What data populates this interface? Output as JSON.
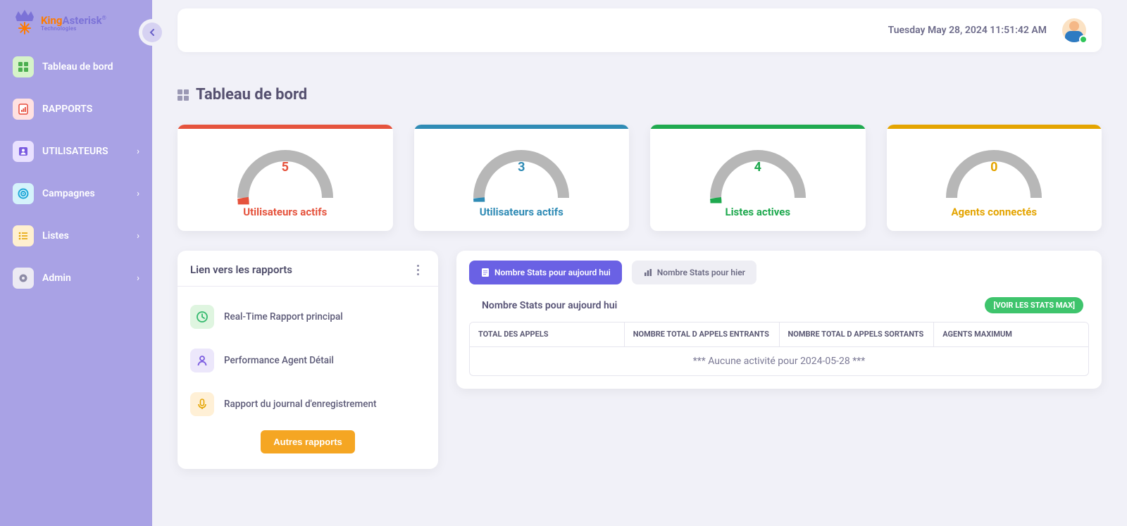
{
  "brand": {
    "name1": "King",
    "name2": "Asterisk",
    "sub": "Technologies"
  },
  "colors": {
    "sidebar_bg": "#a9a2e5",
    "accent_primary": "#6a61e4",
    "btn_orange": "#f5a623",
    "badge_green": "#3ec46c"
  },
  "sidebar": {
    "items": [
      {
        "label": "Tableau de bord",
        "icon_bg": "#d6f3c9",
        "icon_color": "#4caf50",
        "icon": "dashboard",
        "has_children": false
      },
      {
        "label": "RAPPORTS",
        "icon_bg": "#ffe1e1",
        "icon_color": "#e74c3c",
        "icon": "report",
        "has_children": false
      },
      {
        "label": "UTILISATEURS",
        "icon_bg": "#e9e1ff",
        "icon_color": "#7b5ce0",
        "icon": "user",
        "has_children": true
      },
      {
        "label": "Campagnes",
        "icon_bg": "#d5f3fb",
        "icon_color": "#1fa8d8",
        "icon": "target",
        "has_children": true
      },
      {
        "label": "Listes",
        "icon_bg": "#fff0d0",
        "icon_color": "#e4a400",
        "icon": "list",
        "has_children": true
      },
      {
        "label": "Admin",
        "icon_bg": "#eceaf3",
        "icon_color": "#8d8ba6",
        "icon": "gear",
        "has_children": true
      }
    ]
  },
  "header": {
    "timestamp": "Tuesday May 28, 2024 11:51:42 AM"
  },
  "page": {
    "title": "Tableau de bord"
  },
  "gauges": [
    {
      "value": "5",
      "label": "Utilisateurs actifs",
      "color": "#e5533d",
      "fill_pct": 5
    },
    {
      "value": "3",
      "label": "Utilisateurs actifs",
      "color": "#2f8bb5",
      "fill_pct": 3
    },
    {
      "value": "4",
      "label": "Listes actives",
      "color": "#1fa94f",
      "fill_pct": 4
    },
    {
      "value": "0",
      "label": "Agents connectés",
      "color": "#e4a400",
      "fill_pct": 0
    }
  ],
  "gauge_style": {
    "track_color": "#b7b7b7",
    "track_width": 16,
    "bg": "#ffffff",
    "value_fontsize": 18,
    "label_fontsize": 15
  },
  "reports": {
    "title": "Lien vers les rapports",
    "items": [
      {
        "label": "Real-Time Rapport principal",
        "icon_bg": "#dff5e0",
        "icon_color": "#34b96e",
        "icon": "clock"
      },
      {
        "label": "Performance Agent Détail",
        "icon_bg": "#ece7fb",
        "icon_color": "#7b5ce0",
        "icon": "person"
      },
      {
        "label": "Rapport du journal d'enregistrement",
        "icon_bg": "#fff0d6",
        "icon_color": "#e4a400",
        "icon": "mic"
      }
    ],
    "more_btn": "Autres rapports"
  },
  "stats": {
    "tabs": [
      {
        "label": "Nombre Stats pour aujourd hui",
        "active": true,
        "icon": "doc"
      },
      {
        "label": "Nombre Stats pour hier",
        "active": false,
        "icon": "bars"
      }
    ],
    "subtitle": "Nombre Stats pour aujourd hui",
    "badge": "[VOIR LES STATS MAX]",
    "columns": [
      "TOTAL DES APPELS",
      "NOMBRE TOTAL D APPELS ENTRANTS",
      "NOMBRE TOTAL D APPELS SORTANTS",
      "AGENTS MAXIMUM"
    ],
    "empty_row": "*** Aucune activité pour 2024-05-28 ***"
  }
}
